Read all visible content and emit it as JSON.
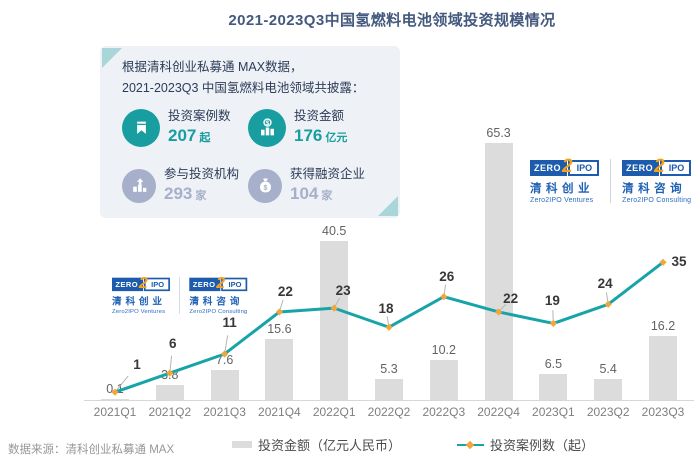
{
  "title": "2021-2023Q3中国氢燃料电池领域投资规模情况",
  "info_box": {
    "line1": "根据清科创业私募通 MAX数据，",
    "line2": "2021-2023Q3 中国氢燃料电池领域共披露：",
    "stats": [
      {
        "label": "投资案例数",
        "value": "207",
        "unit": "起",
        "icon": "bookmark-icon",
        "tone": "teal"
      },
      {
        "label": "投资金额",
        "value": "176",
        "unit": "亿元",
        "icon": "chart-dollar-icon",
        "tone": "teal"
      },
      {
        "label": "参与投资机构",
        "value": "293",
        "unit": "家",
        "icon": "podium-icon",
        "tone": "gray"
      },
      {
        "label": "获得融资企业",
        "value": "104",
        "unit": "家",
        "icon": "moneybag-icon",
        "tone": "gray"
      }
    ]
  },
  "logos": [
    {
      "zero": "ZERO",
      "two": "2",
      "ipo": "IPO",
      "cn": "清科创业",
      "en": "Zero2IPO Ventures"
    },
    {
      "zero": "ZERO",
      "two": "2",
      "ipo": "IPO",
      "cn": "清科咨询",
      "en": "Zero2IPO Consulting"
    }
  ],
  "chart_data": {
    "type": "bar+line",
    "categories": [
      "2021Q1",
      "2021Q2",
      "2021Q3",
      "2021Q4",
      "2022Q1",
      "2022Q2",
      "2022Q3",
      "2022Q4",
      "2023Q1",
      "2023Q2",
      "2023Q3"
    ],
    "series": [
      {
        "name": "投资金额（亿元人民币）",
        "type": "bar",
        "values": [
          0.1,
          3.8,
          7.6,
          15.6,
          40.5,
          5.3,
          10.2,
          65.3,
          6.5,
          5.4,
          16.2
        ]
      },
      {
        "name": "投资案例数（起）",
        "type": "line",
        "values": [
          1,
          6,
          11,
          22,
          23,
          18,
          26,
          22,
          19,
          24,
          35
        ]
      }
    ],
    "title": "2021-2023Q3中国氢燃料电池领域投资规模情况",
    "xlabel": "",
    "ylabel": "",
    "grid": false,
    "legend_position": "bottom",
    "value_labels": true
  },
  "source": "数据来源：清科创业私募通 MAX",
  "colors": {
    "accent_teal": "#189da1",
    "line_teal": "#17a4a9",
    "marker_orange": "#f2a63a",
    "icon_gray_blue": "#a6b0ca",
    "bar_gray": "#dcdcdc",
    "title_blue": "#44597e",
    "logo_blue": "#1d5bad",
    "logo_orange": "#f6a21d",
    "panel_bg": "#eef1f5",
    "panel_corner": "#a9d6d8"
  }
}
